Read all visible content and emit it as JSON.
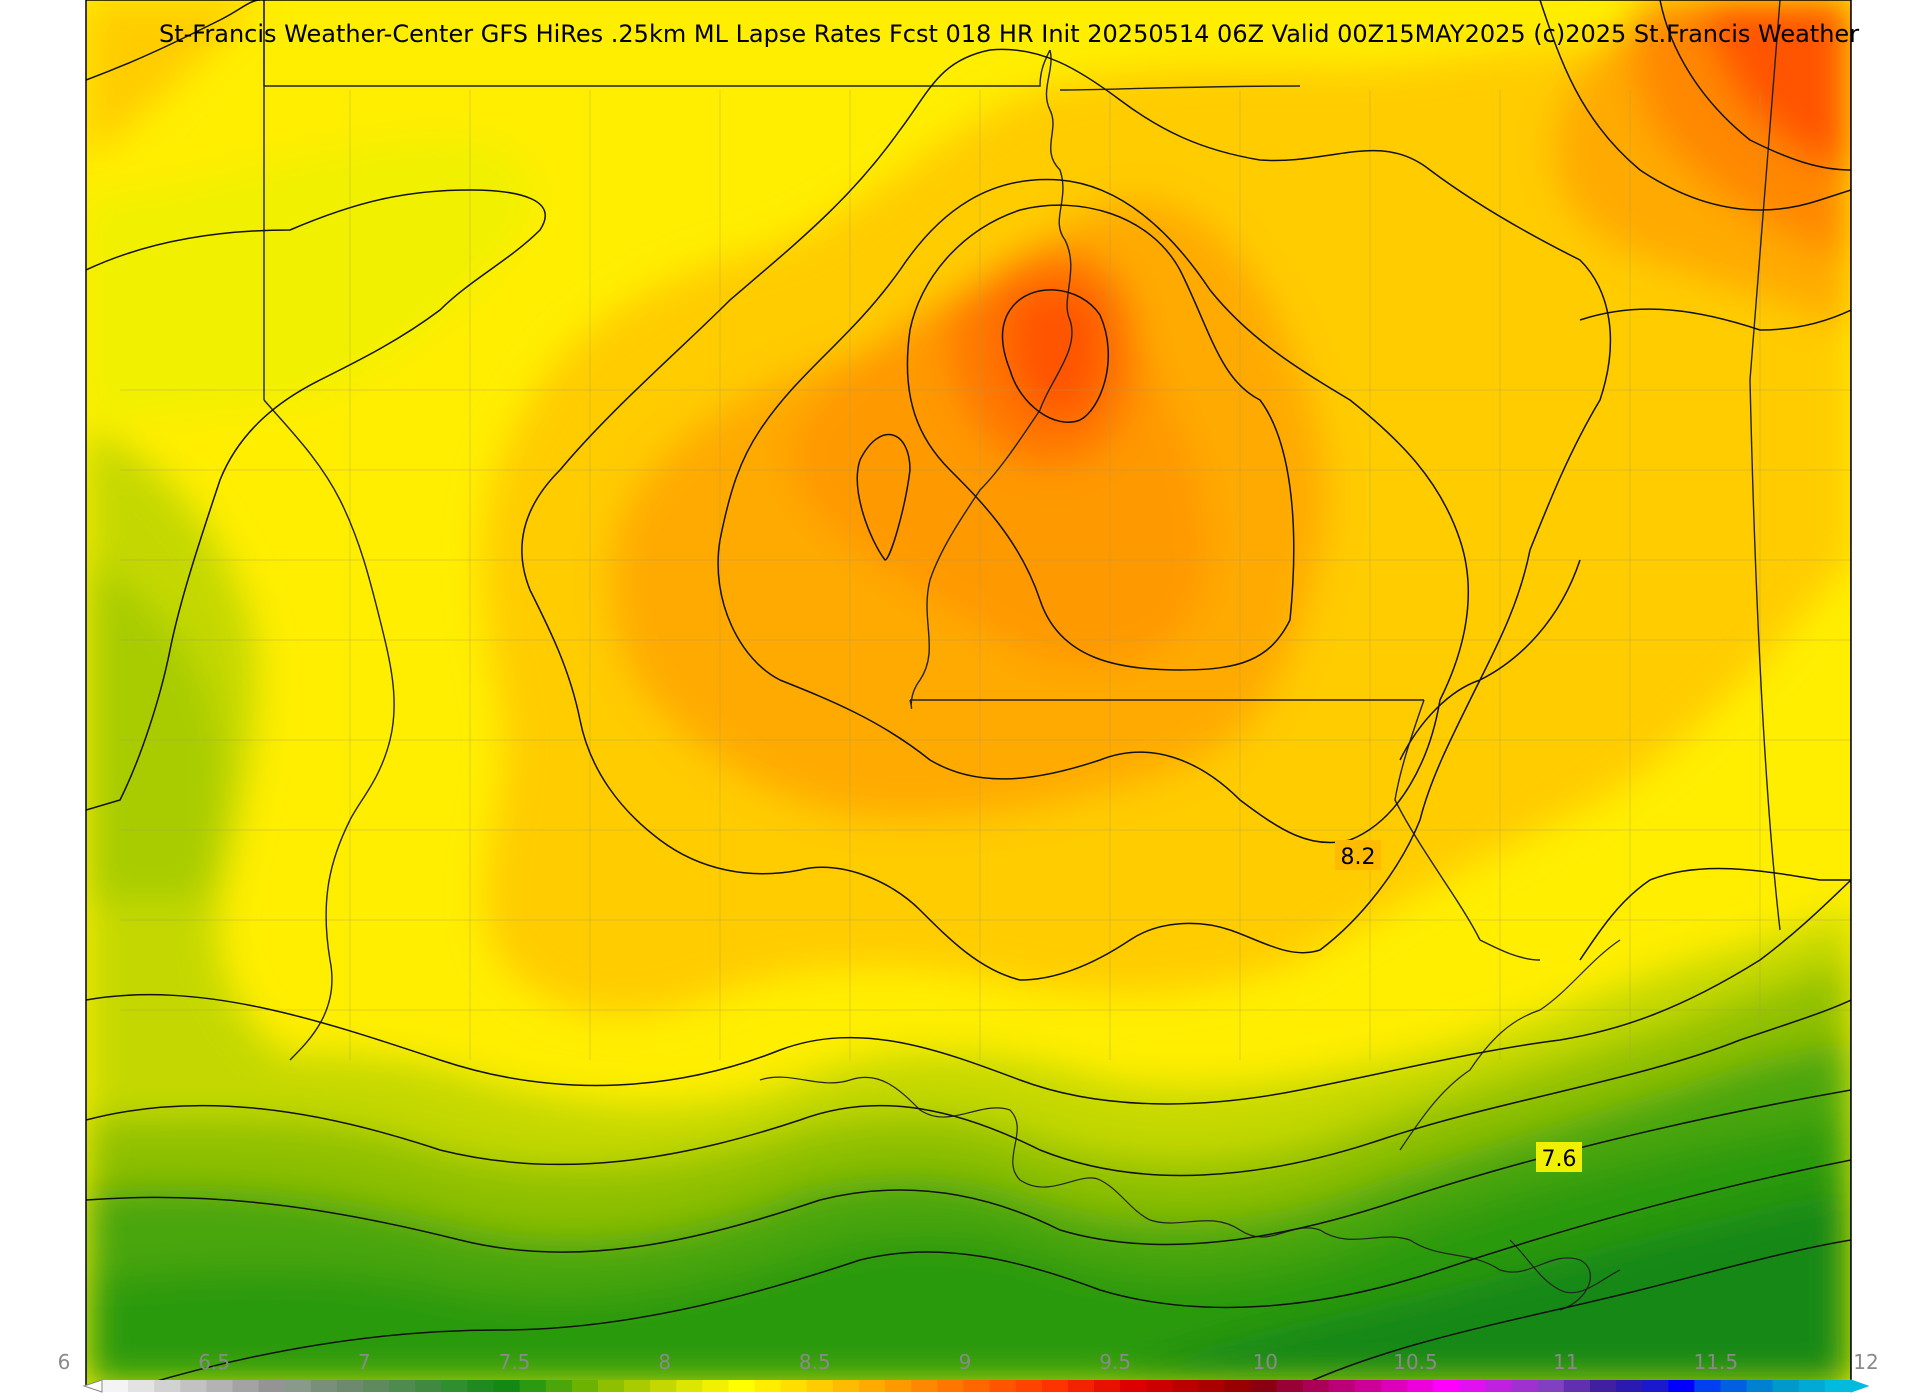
{
  "map": {
    "title": "St-Francis Weather-Center GFS HiRes .25km ML Lapse Rates  Fcst 018 HR Init 20250514 06Z  Valid 00Z15MAY2025    (c)2025 St.Francis Weather",
    "contour_labels": [
      "8.2",
      "7.6"
    ],
    "colors": {
      "background": "#ffffff",
      "frame": "#000000",
      "contour": "#111111",
      "boundary": "#222222",
      "county": "#9a9a6a"
    }
  },
  "colorbar": {
    "min": 6,
    "max": 12,
    "tick_labels": [
      "6",
      "6.5",
      "7",
      "7.5",
      "8",
      "8.5",
      "9",
      "9.5",
      "10",
      "10.5",
      "11",
      "11.5",
      "12"
    ],
    "colors": [
      "#f4f4f4",
      "#e3e3e3",
      "#d2d2d2",
      "#c2c2c2",
      "#b3b3b3",
      "#a3a3a3",
      "#949494",
      "#8a9a8a",
      "#7a8f7a",
      "#6e8a6e",
      "#5e8a5e",
      "#4f8a4f",
      "#3f8a3f",
      "#2f8f2f",
      "#1f8a1f",
      "#138813",
      "#2c9a10",
      "#4aa60a",
      "#6cb200",
      "#8ec000",
      "#a8cc00",
      "#c4d800",
      "#dce600",
      "#f0f000",
      "#ffff00",
      "#ffee00",
      "#ffde00",
      "#ffcc00",
      "#ffbb00",
      "#ffaa00",
      "#ff9900",
      "#ff8800",
      "#ff7700",
      "#ff6600",
      "#ff5500",
      "#ff4400",
      "#ff3300",
      "#f42200",
      "#e81100",
      "#dd0000",
      "#cc0000",
      "#bb0000",
      "#aa0000",
      "#990000",
      "#8a0010",
      "#990033",
      "#aa0055",
      "#bb0077",
      "#cc0099",
      "#dd00bb",
      "#ee00dd",
      "#ff00ff",
      "#e010f0",
      "#c020e0",
      "#a030d0",
      "#8040c0",
      "#6030b0",
      "#4020a0",
      "#2a1ab0",
      "#1a1acc",
      "#0000ff",
      "#0040f0",
      "#0060e0",
      "#0080d0",
      "#0099cc",
      "#00aad4",
      "#00bbdd"
    ]
  }
}
